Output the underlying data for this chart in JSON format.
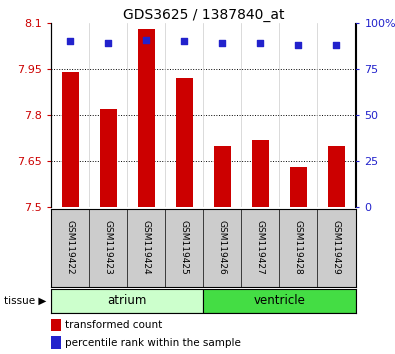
{
  "title": "GDS3625 / 1387840_at",
  "categories": [
    "GSM119422",
    "GSM119423",
    "GSM119424",
    "GSM119425",
    "GSM119426",
    "GSM119427",
    "GSM119428",
    "GSM119429"
  ],
  "bar_values": [
    7.94,
    7.82,
    8.08,
    7.92,
    7.7,
    7.72,
    7.63,
    7.7
  ],
  "percentile_values": [
    90,
    89,
    91,
    90,
    89,
    89,
    88,
    88
  ],
  "y_min": 7.5,
  "y_max": 8.1,
  "y_ticks": [
    7.5,
    7.65,
    7.8,
    7.95,
    8.1
  ],
  "y_tick_labels": [
    "7.5",
    "7.65",
    "7.8",
    "7.95",
    "8.1"
  ],
  "y2_ticks": [
    0,
    25,
    50,
    75,
    100
  ],
  "y2_tick_labels": [
    "0",
    "25",
    "50",
    "75",
    "100%"
  ],
  "bar_color": "#cc0000",
  "dot_color": "#2222cc",
  "tissue_groups": [
    {
      "label": "atrium",
      "start": 0,
      "end": 4,
      "color": "#ccffcc"
    },
    {
      "label": "ventricle",
      "start": 4,
      "end": 8,
      "color": "#44dd44"
    }
  ],
  "tissue_label": "tissue",
  "legend_bar_label": "transformed count",
  "legend_dot_label": "percentile rank within the sample",
  "left_tick_color": "#cc0000",
  "right_tick_color": "#2222cc",
  "grid_color": "#000000",
  "sample_bg_color": "#cccccc",
  "bar_width": 0.45
}
